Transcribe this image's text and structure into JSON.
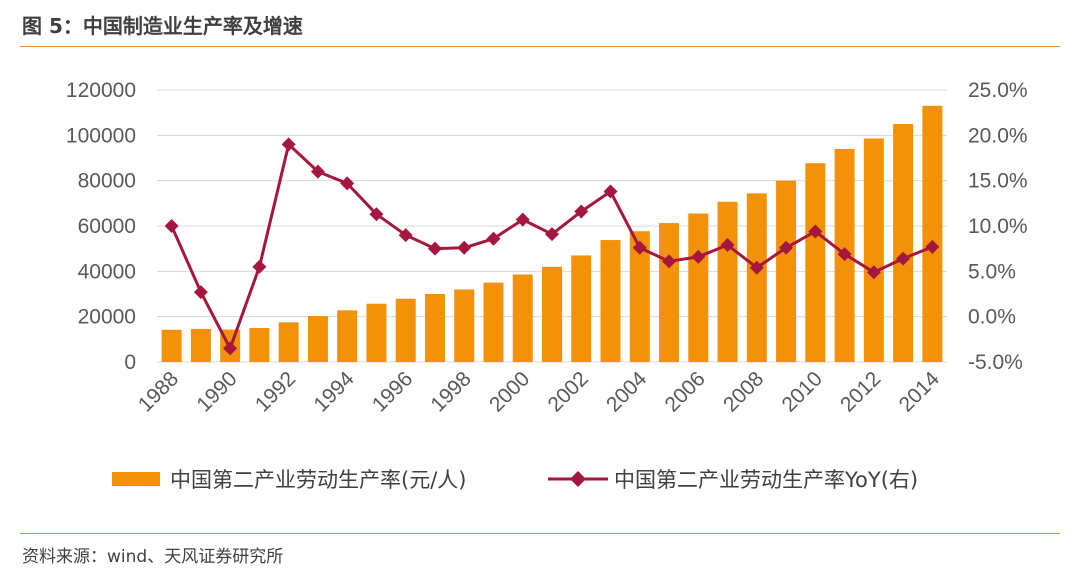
{
  "header": {
    "title": "图 5：中国制造业生产率及增速"
  },
  "footer": {
    "source": "资料来源：wind、天风证券研究所"
  },
  "colors": {
    "bar": "#f39208",
    "line": "#a5173e",
    "rule": "#e8923a",
    "grid": "#d9d9d9"
  },
  "chart_data": {
    "type": "bar",
    "categories": [
      "1988",
      "1989",
      "1990",
      "1991",
      "1992",
      "1993",
      "1994",
      "1995",
      "1996",
      "1997",
      "1998",
      "1999",
      "2000",
      "2001",
      "2002",
      "2003",
      "2004",
      "2005",
      "2006",
      "2007",
      "2008",
      "2009",
      "2010",
      "2011",
      "2012",
      "2013",
      "2014"
    ],
    "x_tick_labels": [
      "1988",
      "1990",
      "1992",
      "1994",
      "1996",
      "1998",
      "2000",
      "2002",
      "2004",
      "2006",
      "2008",
      "2010",
      "2012",
      "2014"
    ],
    "y_left": {
      "ticks": [
        "0",
        "20000",
        "40000",
        "60000",
        "80000",
        "100000",
        "120000"
      ],
      "lim": [
        0,
        120000
      ]
    },
    "y_right": {
      "ticks": [
        "-5.0%",
        "0.0%",
        "5.0%",
        "10.0%",
        "15.0%",
        "20.0%",
        "25.0%"
      ],
      "lim": [
        -5.0,
        25.0
      ]
    },
    "grid": true,
    "legend_position": "bottom",
    "series": [
      {
        "name": "中国第二产业劳动生产率(元/人)",
        "type": "bar",
        "axis": "left",
        "values": [
          14200,
          14600,
          14300,
          15000,
          17500,
          20300,
          22800,
          25700,
          27900,
          30000,
          32000,
          35000,
          38600,
          42000,
          47000,
          53800,
          57700,
          61300,
          65500,
          70700,
          74400,
          80000,
          87700,
          94000,
          98600,
          105000,
          113000
        ]
      },
      {
        "name": "中国第二产业劳动生产率YoY(右)",
        "type": "line",
        "axis": "right",
        "values": [
          10.0,
          2.7,
          -3.5,
          5.5,
          19.0,
          16.0,
          14.7,
          11.3,
          9.0,
          7.5,
          7.6,
          8.6,
          10.7,
          9.1,
          11.6,
          13.8,
          7.6,
          6.1,
          6.6,
          7.9,
          5.4,
          7.6,
          9.4,
          6.9,
          4.9,
          6.4,
          7.7
        ]
      }
    ]
  }
}
